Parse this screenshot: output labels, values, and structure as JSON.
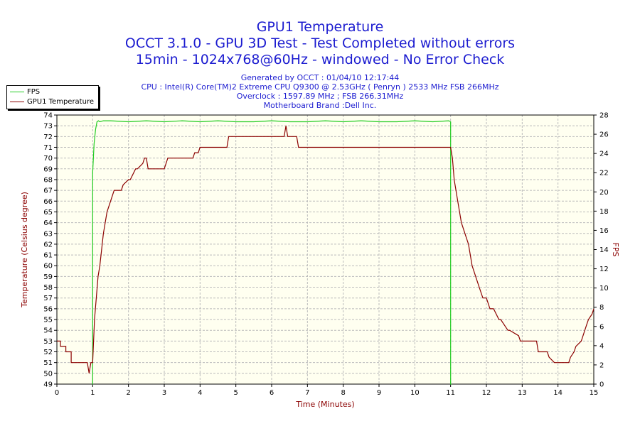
{
  "chart_data": {
    "type": "line",
    "title": "GPU1 Temperature",
    "subtitle": [
      "OCCT 3.1.0 - GPU 3D Test - Test Completed without errors",
      "15min - 1024x768@60Hz - windowed - No Error Check"
    ],
    "info": [
      "Generated by OCCT : 01/04/10 12:17:44",
      "CPU : Intel(R) Core(TM)2 Extreme CPU Q9300 @ 2.53GHz ( Penryn ) 2533 MHz FSB 266MHz",
      "Overclock : 1597.89 MHz ; FSB 266.31MHz",
      "Motherboard Brand :Dell Inc."
    ],
    "xlabel": "Time (Minutes)",
    "ylabel": "Temperature (Celsius degree)",
    "y2label": "FPS",
    "xlim": [
      0,
      15
    ],
    "ylim": [
      49,
      74
    ],
    "y2lim": [
      0,
      28
    ],
    "x_ticks": [
      0,
      1,
      2,
      3,
      4,
      5,
      6,
      7,
      8,
      9,
      10,
      11,
      12,
      13,
      14,
      15
    ],
    "y_ticks": [
      49,
      50,
      51,
      52,
      53,
      54,
      55,
      56,
      57,
      58,
      59,
      60,
      61,
      62,
      63,
      64,
      65,
      66,
      67,
      68,
      69,
      70,
      71,
      72,
      73,
      74
    ],
    "y2_ticks": [
      0,
      2,
      4,
      6,
      8,
      10,
      12,
      14,
      16,
      18,
      20,
      22,
      24,
      26,
      28
    ],
    "grid": true,
    "legend_position": "top-left",
    "series": [
      {
        "name": "FPS",
        "axis": "right",
        "color": "#22cc22",
        "x": [
          0.99,
          1.0,
          1.0,
          1.04,
          1.08,
          1.12,
          1.16,
          1.2,
          1.3,
          1.5,
          2.0,
          2.5,
          3.0,
          3.5,
          4.0,
          4.5,
          5.0,
          5.5,
          6.0,
          6.5,
          7.0,
          7.5,
          8.0,
          8.5,
          9.0,
          9.5,
          10.0,
          10.5,
          10.95,
          11.0,
          11.0,
          11.02
        ],
        "y": [
          0,
          0,
          22,
          25,
          26.5,
          27.3,
          27.4,
          27.3,
          27.4,
          27.4,
          27.3,
          27.4,
          27.3,
          27.4,
          27.3,
          27.4,
          27.3,
          27.3,
          27.4,
          27.3,
          27.3,
          27.4,
          27.3,
          27.4,
          27.3,
          27.3,
          27.4,
          27.3,
          27.4,
          27.3,
          0,
          0
        ]
      },
      {
        "name": "GPU1 Temperature",
        "axis": "left",
        "color": "#8b0000",
        "x": [
          0,
          0.1,
          0.1,
          0.25,
          0.25,
          0.4,
          0.4,
          0.85,
          0.9,
          0.95,
          1.0,
          1.05,
          1.1,
          1.15,
          1.2,
          1.3,
          1.4,
          1.5,
          1.6,
          1.8,
          1.85,
          2.0,
          2.05,
          2.2,
          2.25,
          2.4,
          2.45,
          2.5,
          2.55,
          2.6,
          2.65,
          3.0,
          3.05,
          3.1,
          3.15,
          3.8,
          3.85,
          3.95,
          4.0,
          4.75,
          4.8,
          6.3,
          6.35,
          6.4,
          6.45,
          6.5,
          6.55,
          6.7,
          6.75,
          11.0,
          11.05,
          11.1,
          11.2,
          11.3,
          11.4,
          11.5,
          11.6,
          11.7,
          11.8,
          11.9,
          12.0,
          12.1,
          12.2,
          12.35,
          12.4,
          12.6,
          12.65,
          12.9,
          12.95,
          13.4,
          13.45,
          13.7,
          13.75,
          13.9,
          14.0,
          14.3,
          14.35,
          14.45,
          14.5,
          14.65,
          14.7,
          14.8,
          14.85,
          14.95,
          15.0
        ],
        "y": [
          53,
          53,
          52.5,
          52.5,
          52,
          52,
          51,
          51,
          50,
          51,
          51,
          55,
          57,
          59,
          60,
          63,
          65,
          66,
          67,
          67,
          67.5,
          68,
          68,
          69,
          69,
          69.5,
          70,
          70,
          69,
          69,
          69,
          69,
          69.5,
          70,
          70,
          70,
          70.5,
          70.5,
          71,
          71,
          72,
          72,
          72,
          73,
          72,
          72,
          72,
          72,
          71,
          71,
          70,
          68,
          66,
          64,
          63,
          62,
          60,
          59,
          58,
          57,
          57,
          56,
          56,
          55,
          55,
          54,
          54,
          53.5,
          53,
          53,
          52,
          52,
          51.5,
          51,
          51,
          51,
          51.5,
          52,
          52.5,
          53,
          53.5,
          54.5,
          55,
          55.5,
          56
        ]
      }
    ]
  }
}
